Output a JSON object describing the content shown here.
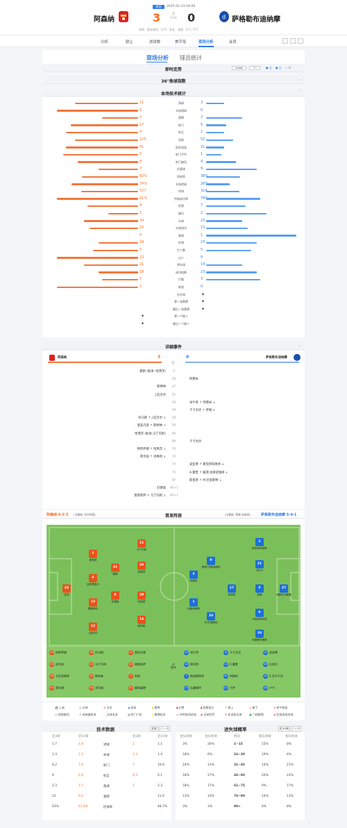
{
  "header": {
    "competition": "欧冠",
    "datetime": "2025-01-23 04:00",
    "home_team": "阿森纳",
    "away_team": "萨格勒布迪纳摩",
    "home_score": "3",
    "away_score": "0",
    "status": "完",
    "half_time": "(1-0)",
    "venue": "场地：酋长球场",
    "weather": "天气：多云",
    "temp": "温度：4°C~5°C"
  },
  "nav": [
    "分析",
    "欧让",
    "进球数",
    "首字母",
    "现场分析",
    "会员"
  ],
  "live_tabs": [
    "现场分析",
    "球员统计"
  ],
  "sections": {
    "trend": "即时走势",
    "corner": "36°角球指数",
    "stats": "本场技术统计",
    "events": "详细事件",
    "lineup": "首发阵容",
    "data": "技术数据",
    "goal_prob": "进失球概率"
  },
  "trend_toggles": [
    "Crown",
    "36*",
    "让",
    "大",
    "析"
  ],
  "stats": [
    {
      "label": "角球",
      "h": "11",
      "a": "3",
      "hw": 0.7,
      "aw": 0.2
    },
    {
      "label": "半场角球",
      "h": "6",
      "a": "0",
      "hw": 0.9,
      "aw": 0
    },
    {
      "label": "黄牌",
      "h": "2",
      "a": "2",
      "hw": 0.4,
      "aw": 0.4
    },
    {
      "label": "射门",
      "h": "17",
      "a": "5",
      "hw": 0.75,
      "aw": 0.22
    },
    {
      "label": "射正",
      "h": "4",
      "a": "1",
      "hw": 0.8,
      "aw": 0.2
    },
    {
      "label": "进攻",
      "h": "125",
      "a": "52",
      "hw": 0.7,
      "aw": 0.3
    },
    {
      "label": "危险进攻",
      "h": "81",
      "a": "21",
      "hw": 0.8,
      "aw": 0.2
    },
    {
      "label": "射门不中",
      "h": "5",
      "a": "1",
      "hw": 0.83,
      "aw": 0.17
    },
    {
      "label": "射门被挡",
      "h": "8",
      "a": "4",
      "hw": 0.67,
      "aw": 0.33
    },
    {
      "label": "任意球",
      "h": "7",
      "a": "9",
      "hw": 0.44,
      "aw": 0.56
    },
    {
      "label": "控球率",
      "h": "62%",
      "a": "38%",
      "hw": 0.62,
      "aw": 0.38
    },
    {
      "label": "半场控球",
      "h": "74%",
      "a": "26%",
      "hw": 0.74,
      "aw": 0.26
    },
    {
      "label": "传球",
      "h": "527",
      "a": "314",
      "hw": 0.63,
      "aw": 0.37
    },
    {
      "label": "传球成功率",
      "h": "91%",
      "a": "79%",
      "hw": 0.9,
      "aw": 0.6
    },
    {
      "label": "犯规",
      "h": "9",
      "a": "7",
      "hw": 0.56,
      "aw": 0.44
    },
    {
      "label": "越位",
      "h": "1",
      "a": "2",
      "hw": 0.33,
      "aw": 0.67
    },
    {
      "label": "头球",
      "h": "34",
      "a": "22",
      "hw": 0.6,
      "aw": 0.4
    },
    {
      "label": "头球成功",
      "h": "15",
      "a": "13",
      "hw": 0.54,
      "aw": 0.46
    },
    {
      "label": "救球",
      "h": "0",
      "a": "1",
      "hw": 0,
      "aw": 1
    },
    {
      "label": "铲球",
      "h": "18",
      "a": "23",
      "hw": 0.44,
      "aw": 0.56
    },
    {
      "label": "拦人数",
      "h": "5",
      "a": "5",
      "hw": 0.5,
      "aw": 0.5
    },
    {
      "label": "过人",
      "h": "13",
      "a": "0",
      "hw": 0.9,
      "aw": 0
    },
    {
      "label": "界外球",
      "h": "21",
      "a": "14",
      "hw": 0.6,
      "aw": 0.4
    },
    {
      "label": "成功抢断",
      "h": "18",
      "a": "23",
      "hw": 0.44,
      "aw": 0.56
    },
    {
      "label": "拦截",
      "h": "2",
      "a": "3",
      "hw": 0.4,
      "aw": 0.6
    },
    {
      "label": "助攻",
      "h": "2",
      "a": "0",
      "hw": 0.9,
      "aw": 0
    }
  ],
  "markers": [
    {
      "label": "先开球",
      "side": "a"
    },
    {
      "label": "第一张黄牌",
      "side": "a"
    },
    {
      "label": "最后一张黄牌",
      "side": "a"
    },
    {
      "label": "第一个换人",
      "side": "h"
    },
    {
      "label": "最后一个换人",
      "side": "h"
    }
  ],
  "events_header": {
    "home": "阿森纳",
    "away": "萨格勒布迪纳摩",
    "home_score": "3",
    "away_score": "0"
  },
  "events": [
    {
      "min": "2'",
      "l": "赖斯 (助攻: 哈弗茨)",
      "r": ""
    },
    {
      "min": "38'",
      "l": "",
      "r": "阿德米"
    },
    {
      "min": "47'",
      "l": "斯特林",
      "r": ""
    },
    {
      "min": "51'",
      "l": "J.廷贝尔",
      "r": ""
    },
    {
      "min": "58'",
      "l": "",
      "r": "米什奇 ↑ 阿德米 ↓"
    },
    {
      "min": "58'",
      "l": "",
      "r": "卡卡文达 ↑ 罗格 ↓"
    },
    {
      "min": "58'",
      "l": "托马斯 ↑ J.廷贝尔 ↓",
      "r": ""
    },
    {
      "min": "59'",
      "l": "恩瓦内里 ↑ 斯特林 ↓",
      "r": ""
    },
    {
      "min": "60'",
      "l": "哈弗茨 (助攻:马丁内利)",
      "r": ""
    },
    {
      "min": "69'",
      "l": "",
      "r": "卡卡文达"
    },
    {
      "min": "74'",
      "l": "特罗萨德 ↑ 哈弗茨 ↓",
      "r": ""
    },
    {
      "min": "74'",
      "l": "库尔兹 ↑ 泽格利 ↓",
      "r": ""
    },
    {
      "min": "75'",
      "l": "",
      "r": "皮亚蒂 ↑ 斯坦奇科维奇 ↓"
    },
    {
      "min": "75'",
      "l": "",
      "r": "A.霍普 ↑ 彼得·拉蒂诺维奇 ↓"
    },
    {
      "min": "87'",
      "l": "",
      "r": "斯坦奇 ↑ M.巴里斯特 ↓"
    },
    {
      "min": "90'+1",
      "l": "厄德高",
      "r": ""
    },
    {
      "min": "90'+1",
      "l": "莫斯库萨 ↑ 马丁内利 ↓",
      "r": ""
    }
  ],
  "lineup": {
    "home_name": "阿森纳",
    "home_form": "4-3-3",
    "home_coach": "(主教练: 阿尔特塔)",
    "away_name": "萨格勒布迪纳摩",
    "away_form": "5-4-1",
    "away_coach": "(主教练: 费莫·泽林奇)",
    "home_players": [
      {
        "n": "22",
        "name": "拉亚"
      },
      {
        "n": "2",
        "name": "斯特林"
      },
      {
        "n": "6",
        "name": "加布里埃尔"
      },
      {
        "n": "15",
        "name": "基维奥尔"
      },
      {
        "n": "12",
        "name": "J.廷贝尔"
      },
      {
        "n": "41",
        "name": "赖斯"
      },
      {
        "n": "8",
        "name": "厄德高"
      },
      {
        "n": "29",
        "name": "哈弗茨"
      },
      {
        "n": "11",
        "name": "马丁内利"
      },
      {
        "n": "29",
        "name": "哈弗茨"
      },
      {
        "n": "14",
        "name": "斯特林"
      }
    ],
    "away_players": [
      {
        "n": "27",
        "name": "科斯托夫斯基"
      },
      {
        "n": "2",
        "name": "斯坦奇科维奇"
      },
      {
        "n": "21",
        "name": "马尔卡"
      },
      {
        "n": "5",
        "name": "罗格"
      },
      {
        "n": "6",
        "name": "马克西米利安"
      },
      {
        "n": "33",
        "name": "内维斯托维奇"
      },
      {
        "n": "17",
        "name": "库里奇"
      },
      {
        "n": "9",
        "name": "彼得·拉蒂诺维奇"
      },
      {
        "n": "10",
        "name": "M.巴里斯特"
      },
      {
        "n": "3",
        "name": "阿德米"
      },
      {
        "n": "1",
        "name": "利维科维奇"
      }
    ],
    "home_subs": [
      "19 特罗萨德",
      "16 托马斯",
      "21 恩瓦内里",
      "20 库尔兹",
      "11 马丁内利",
      "35 莫斯库萨",
      "33 卡拉菲奥里",
      "24 斯特林",
      "2 利诺",
      "30 菲尔德",
      "34 沃巴格",
      "32 塞特福德"
    ],
    "away_subs": [
      "20 米什奇",
      "8 卡卡文达",
      "27 皮亚蒂",
      "24 斯坦奇",
      "12 A.霍普",
      "30 扎加尔",
      "7 斯波贾里奇",
      "15 阿德米",
      "22 S.贝尔卡茨",
      "13 扎霍维奇",
      "14 卡罗",
      "28 卢卡"
    ]
  },
  "legend": [
    "入球",
    "点球",
    "乌龙",
    "助攻",
    "黄牌",
    "红牌",
    "两黄变红",
    "换上",
    "换下",
    "射中框架",
    "视频裁判",
    "进球被取消",
    "点球未进",
    "射门门柱",
    "黄牌取消",
    "VAR取消进球",
    "点球判罚",
    "失误致丢球",
    "门线解围",
    "犯规造成进球"
  ],
  "tech_data": {
    "tabs": [
      "全部",
      "近10场"
    ],
    "head": [
      "近3场",
      "近10场",
      "",
      "近3场",
      "近10场"
    ],
    "rows": [
      {
        "label": "进球",
        "h3": "1.7",
        "h10": "1.8",
        "a3": "2",
        "a10": "1.1"
      },
      {
        "label": "失球",
        "h3": "1.3",
        "h10": "1.1",
        "a3": "1.3",
        "a10": "1.4"
      },
      {
        "label": "射门",
        "h3": "8.2",
        "h10": "7.6",
        "a3": "7",
        "a10": "10.8"
      },
      {
        "label": "射正",
        "h3": "9",
        "h10": "6.6",
        "a3": "6.5",
        "a10": "6.1"
      },
      {
        "label": "角球",
        "h3": "2.3",
        "h10": "1.7",
        "a3": "1",
        "a10": "2.3"
      },
      {
        "label": "黄牌",
        "h3": "12",
        "h10": "9.2",
        "a3": "",
        "a10": "11.6"
      },
      {
        "label": "控球率",
        "h3": "63%",
        "h10": "61.8%",
        "a3": "",
        "a10": "48.7%"
      }
    ]
  },
  "goal_prob": {
    "tabs": [
      "近30场",
      "近50场"
    ],
    "head": [
      "主队进球",
      "主队失球",
      "时间",
      "客队进球",
      "客队失球"
    ],
    "rows": [
      {
        "t": "1~15",
        "a": "3%",
        "b": "20%",
        "c": "15%",
        "d": "8%"
      },
      {
        "t": "16~30",
        "a": "18%",
        "b": "6%",
        "c": "19%",
        "d": "6%"
      },
      {
        "t": "31~45",
        "a": "24%",
        "b": "13%",
        "c": "14%",
        "d": "21%"
      },
      {
        "t": "46~60",
        "a": "18%",
        "b": "27%",
        "c": "20%",
        "d": "23%"
      },
      {
        "t": "61~75",
        "a": "18%",
        "b": "17%",
        "c": "9%",
        "d": "17%"
      },
      {
        "t": "76~90",
        "a": "13%",
        "b": "10%",
        "c": "14%",
        "d": "13%"
      },
      {
        "t": "90+",
        "a": "3%",
        "b": "3%",
        "c": "6%",
        "d": "8%"
      }
    ]
  }
}
